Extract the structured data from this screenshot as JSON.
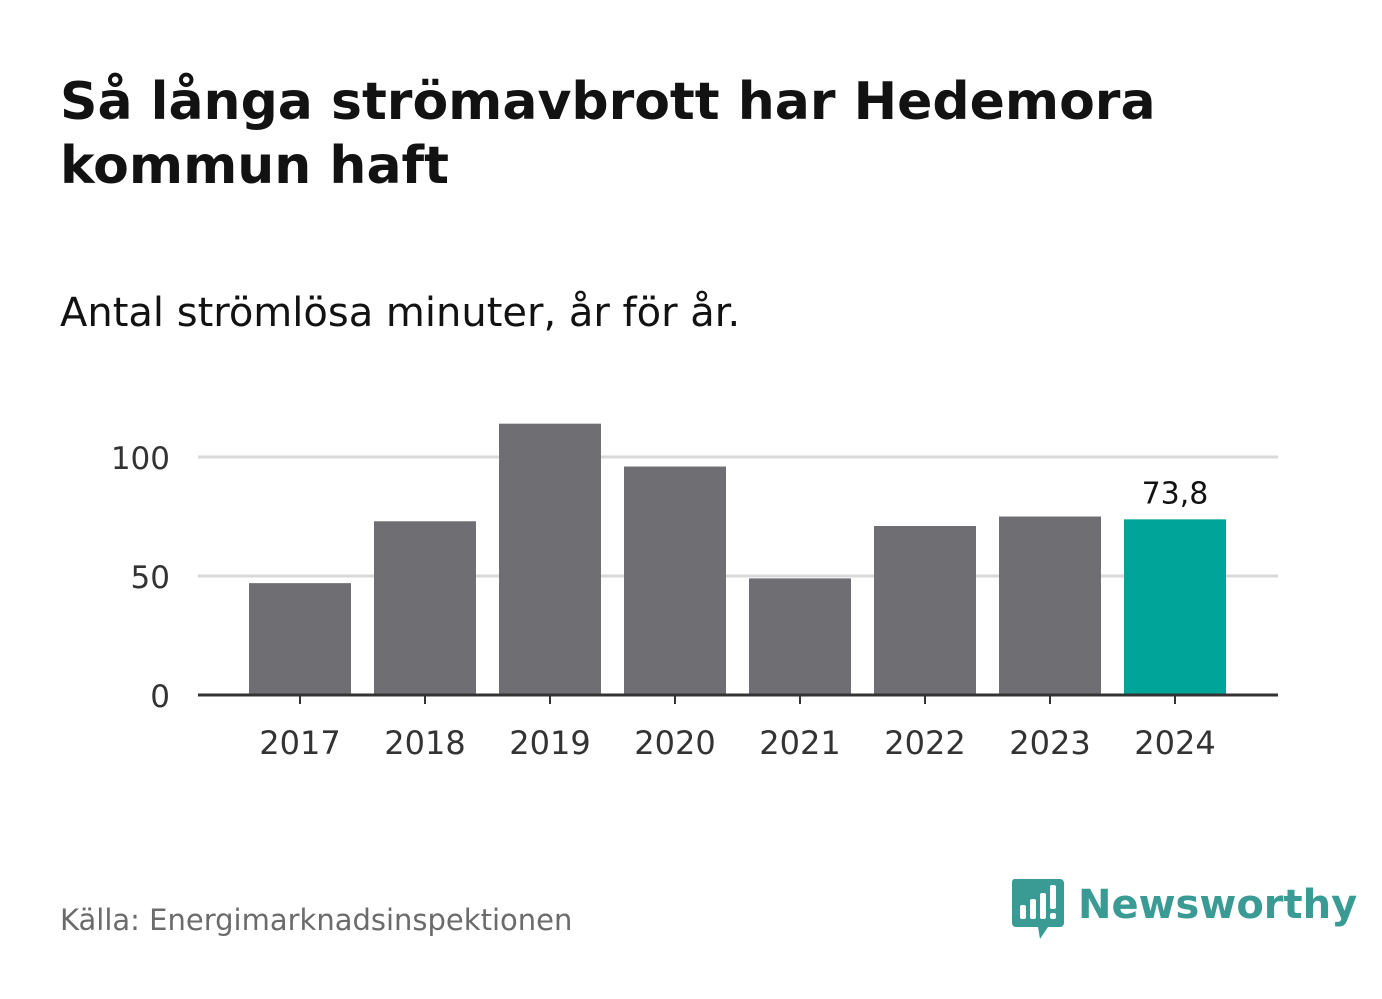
{
  "title": "Så långa strömavbrott har Hedemora kommun haft",
  "subtitle": "Antal strömlösa minuter, år för år.",
  "source": "Källa: Energimarknadsinspektionen",
  "brand": {
    "name": "Newsworthy",
    "icon": "newsworthy-logo-icon",
    "color": "#3a9b94"
  },
  "colors": {
    "bar": "#6f6e73",
    "highlight": "#00a499",
    "grid": "#d9d9d9",
    "axis": "#333333",
    "text": "#333333"
  },
  "chart_data": {
    "type": "bar",
    "title": "Så långa strömavbrott har Hedemora kommun haft",
    "subtitle": "Antal strömlösa minuter, år för år.",
    "categories": [
      "2017",
      "2018",
      "2019",
      "2020",
      "2021",
      "2022",
      "2023",
      "2024"
    ],
    "values": [
      47,
      73,
      114,
      96,
      49,
      71,
      75,
      73.8
    ],
    "highlight_index": 7,
    "data_labels": [
      {
        "index": 7,
        "text": "73,8"
      }
    ],
    "yticks": [
      {
        "value": 0,
        "label": "0"
      },
      {
        "value": 50,
        "label": "50"
      },
      {
        "value": 100,
        "label": "100"
      }
    ],
    "ylim": [
      0,
      114
    ],
    "grid": true,
    "legend": "none"
  }
}
